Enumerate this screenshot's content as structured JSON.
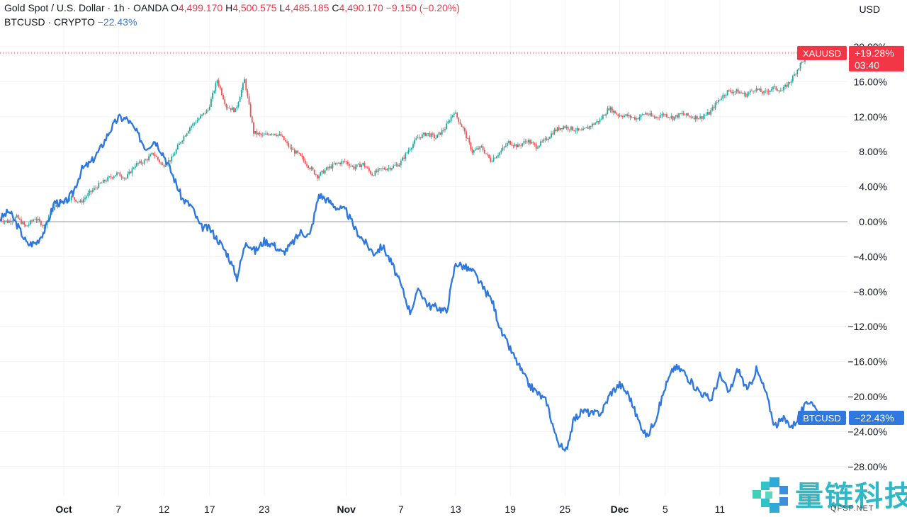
{
  "legend": {
    "symbol_line": "Gold Spot / U.S. Dollar · 1h · OANDA",
    "o_key": "O",
    "o_val": "4,499.170",
    "h_key": "H",
    "h_val": "4,500.575",
    "l_key": "L",
    "l_val": "4,485.185",
    "c_key": "C",
    "c_val": "4,490.170",
    "change": "−9.150 (−0.20%)",
    "compare_symbol": "BTCUSD · CRYPTO",
    "compare_change": "−22.43%"
  },
  "currency": "USD",
  "watermark": {
    "text": "量链科技",
    "sub": "QFSP.NET",
    "logo": "qfsp-logo-icon"
  },
  "colors": {
    "up": "#26a69a",
    "down": "#ef5350",
    "btc": "#2f78e0",
    "gold_label": "#f23645",
    "btc_label": "#2f78e0"
  },
  "chart_data": {
    "type": "line",
    "y_unit": "%",
    "ylim": [
      -30,
      21
    ],
    "y_ticks": [
      "20.00%",
      "16.00%",
      "12.00%",
      "8.00%",
      "4.00%",
      "0.00%",
      "−4.00%",
      "−8.00%",
      "−12.00%",
      "−16.00%",
      "−20.00%",
      "−24.00%",
      "−28.00%"
    ],
    "y_tick_values": [
      20,
      16,
      12,
      8,
      4,
      0,
      -4,
      -8,
      -12,
      -16,
      -20,
      -24,
      -28
    ],
    "x_labels": [
      "Oct",
      "7",
      "12",
      "17",
      "23",
      "Nov",
      "7",
      "13",
      "19",
      "25",
      "Dec",
      "5",
      "11"
    ],
    "x_label_bold": [
      true,
      false,
      false,
      false,
      false,
      true,
      false,
      false,
      false,
      false,
      true,
      false,
      false
    ],
    "x_label_days": [
      0,
      6,
      11,
      16,
      22,
      31,
      37,
      43,
      49,
      55,
      61,
      66,
      72
    ],
    "x_range_days": [
      -7,
      86
    ],
    "series": [
      {
        "name": "XAUUSD",
        "style": "candles",
        "label": "XAUUSD",
        "last_value": "+19.28%",
        "countdown": "03:40",
        "points": [
          [
            -7,
            0.3
          ],
          [
            -6,
            0
          ],
          [
            -5,
            0.5
          ],
          [
            -4,
            -0.6
          ],
          [
            -3,
            0.4
          ],
          [
            -2,
            -0.5
          ],
          [
            -1,
            1.5
          ],
          [
            0,
            2.3
          ],
          [
            1,
            2.8
          ],
          [
            2,
            2.2
          ],
          [
            3,
            3.3
          ],
          [
            4,
            4.2
          ],
          [
            5,
            4.9
          ],
          [
            6,
            5.5
          ],
          [
            7,
            5.0
          ],
          [
            8,
            6.5
          ],
          [
            9,
            6.9
          ],
          [
            10,
            7.8
          ],
          [
            11,
            6.4
          ],
          [
            12,
            7.2
          ],
          [
            13,
            9.2
          ],
          [
            14,
            10.8
          ],
          [
            15,
            11.8
          ],
          [
            16,
            12.8
          ],
          [
            17,
            16.2
          ],
          [
            18,
            13.2
          ],
          [
            19,
            12.7
          ],
          [
            20,
            16.2
          ],
          [
            21,
            10.2
          ],
          [
            22,
            9.8
          ],
          [
            23,
            10.2
          ],
          [
            24,
            9.8
          ],
          [
            25,
            8.4
          ],
          [
            26,
            7.6
          ],
          [
            27,
            6.4
          ],
          [
            28,
            5.2
          ],
          [
            29,
            6.0
          ],
          [
            30,
            6.6
          ],
          [
            31,
            6.9
          ],
          [
            32,
            6.2
          ],
          [
            33,
            6.6
          ],
          [
            34,
            5.4
          ],
          [
            35,
            6.0
          ],
          [
            36,
            6.2
          ],
          [
            37,
            6.6
          ],
          [
            38,
            8.2
          ],
          [
            39,
            9.6
          ],
          [
            40,
            10.1
          ],
          [
            41,
            9.6
          ],
          [
            42,
            10.7
          ],
          [
            43,
            12.6
          ],
          [
            44,
            10.6
          ],
          [
            45,
            8.0
          ],
          [
            46,
            8.5
          ],
          [
            47,
            7.0
          ],
          [
            48,
            7.9
          ],
          [
            49,
            9.1
          ],
          [
            50,
            8.6
          ],
          [
            51,
            9.3
          ],
          [
            52,
            8.6
          ],
          [
            53,
            9.3
          ],
          [
            54,
            10.4
          ],
          [
            55,
            10.9
          ],
          [
            56,
            10.6
          ],
          [
            57,
            10.3
          ],
          [
            58,
            11.0
          ],
          [
            59,
            11.6
          ],
          [
            60,
            13.0
          ],
          [
            61,
            12.2
          ],
          [
            62,
            12.1
          ],
          [
            63,
            11.8
          ],
          [
            64,
            12.4
          ],
          [
            65,
            11.9
          ],
          [
            66,
            12.3
          ],
          [
            67,
            11.9
          ],
          [
            68,
            12.3
          ],
          [
            69,
            12.0
          ],
          [
            70,
            11.9
          ],
          [
            71,
            12.4
          ],
          [
            72,
            13.9
          ],
          [
            73,
            14.9
          ],
          [
            74,
            14.9
          ],
          [
            75,
            14.5
          ],
          [
            76,
            15.2
          ],
          [
            77,
            14.7
          ],
          [
            78,
            15.3
          ],
          [
            79,
            15.0
          ],
          [
            80,
            16.2
          ],
          [
            81,
            18.0
          ],
          [
            82,
            19.4
          ],
          [
            83,
            19.28
          ]
        ]
      },
      {
        "name": "BTCUSD",
        "style": "line",
        "label": "BTCUSD",
        "last_value": "−22.43%",
        "points": [
          [
            -7,
            0.3
          ],
          [
            -6,
            1.2
          ],
          [
            -5,
            -0.6
          ],
          [
            -4,
            -2.6
          ],
          [
            -3,
            -2.4
          ],
          [
            -2,
            -0.8
          ],
          [
            -1,
            2.3
          ],
          [
            0,
            2.0
          ],
          [
            1,
            3.3
          ],
          [
            2,
            6.0
          ],
          [
            3,
            6.8
          ],
          [
            4,
            8.3
          ],
          [
            5,
            10.3
          ],
          [
            6,
            11.9
          ],
          [
            7,
            11.7
          ],
          [
            8,
            10.2
          ],
          [
            9,
            8.4
          ],
          [
            10,
            9.3
          ],
          [
            11,
            7.6
          ],
          [
            12,
            5.2
          ],
          [
            13,
            2.6
          ],
          [
            14,
            1.8
          ],
          [
            15,
            -0.6
          ],
          [
            16,
            -0.8
          ],
          [
            17,
            -2.2
          ],
          [
            18,
            -3.8
          ],
          [
            19,
            -6.4
          ],
          [
            20,
            -2.2
          ],
          [
            21,
            -3.4
          ],
          [
            22,
            -2.2
          ],
          [
            23,
            -2.6
          ],
          [
            24,
            -3.6
          ],
          [
            25,
            -2.6
          ],
          [
            26,
            -1.2
          ],
          [
            27,
            -1.6
          ],
          [
            28,
            3.1
          ],
          [
            29,
            2.4
          ],
          [
            30,
            1.6
          ],
          [
            31,
            1.2
          ],
          [
            32,
            -0.9
          ],
          [
            33,
            -2.3
          ],
          [
            34,
            -3.6
          ],
          [
            35,
            -2.8
          ],
          [
            36,
            -4.8
          ],
          [
            37,
            -7.3
          ],
          [
            38,
            -10.3
          ],
          [
            39,
            -7.7
          ],
          [
            40,
            -9.6
          ],
          [
            41,
            -9.8
          ],
          [
            42,
            -10.3
          ],
          [
            43,
            -4.7
          ],
          [
            44,
            -5.2
          ],
          [
            45,
            -5.8
          ],
          [
            46,
            -7.6
          ],
          [
            47,
            -9.0
          ],
          [
            48,
            -12.6
          ],
          [
            49,
            -14.6
          ],
          [
            50,
            -16.6
          ],
          [
            51,
            -18.6
          ],
          [
            52,
            -19.6
          ],
          [
            53,
            -20.6
          ],
          [
            54,
            -24.6
          ],
          [
            55,
            -26.5
          ],
          [
            56,
            -22.6
          ],
          [
            57,
            -21.6
          ],
          [
            58,
            -22.0
          ],
          [
            59,
            -21.8
          ],
          [
            60,
            -19.6
          ],
          [
            61,
            -18.6
          ],
          [
            62,
            -19.8
          ],
          [
            63,
            -22.6
          ],
          [
            64,
            -24.6
          ],
          [
            65,
            -22.4
          ],
          [
            66,
            -18.9
          ],
          [
            67,
            -16.6
          ],
          [
            68,
            -17.1
          ],
          [
            69,
            -18.6
          ],
          [
            70,
            -19.6
          ],
          [
            71,
            -20.4
          ],
          [
            72,
            -17.6
          ],
          [
            73,
            -19.6
          ],
          [
            74,
            -16.8
          ],
          [
            75,
            -19.4
          ],
          [
            76,
            -16.9
          ],
          [
            77,
            -19.4
          ],
          [
            78,
            -23.3
          ],
          [
            79,
            -22.6
          ],
          [
            80,
            -23.4
          ],
          [
            81,
            -21.6
          ],
          [
            82,
            -20.3
          ],
          [
            83,
            -22.43
          ]
        ]
      }
    ],
    "baseline": 0,
    "gold_price_line": 19.28,
    "grid": true,
    "legend_placement": "top-left"
  }
}
